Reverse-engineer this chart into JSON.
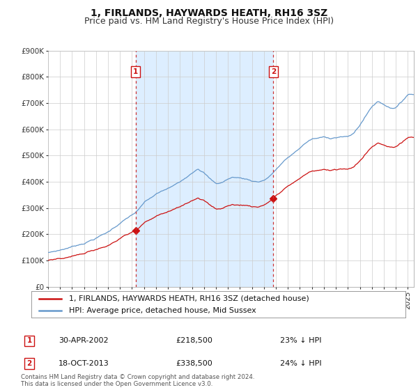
{
  "title": "1, FIRLANDS, HAYWARDS HEATH, RH16 3SZ",
  "subtitle": "Price paid vs. HM Land Registry's House Price Index (HPI)",
  "ylim": [
    0,
    900000
  ],
  "yticks": [
    0,
    100000,
    200000,
    300000,
    400000,
    500000,
    600000,
    700000,
    800000,
    900000
  ],
  "ytick_labels": [
    "£0",
    "£100K",
    "£200K",
    "£300K",
    "£400K",
    "£500K",
    "£600K",
    "£700K",
    "£800K",
    "£900K"
  ],
  "hpi_color": "#6699cc",
  "price_color": "#cc1111",
  "shade_color": "#ddeeff",
  "dashed_line_color": "#cc3333",
  "background_color": "#ffffff",
  "grid_color": "#cccccc",
  "legend_label_price": "1, FIRLANDS, HAYWARDS HEATH, RH16 3SZ (detached house)",
  "legend_label_hpi": "HPI: Average price, detached house, Mid Sussex",
  "transaction1_date": "30-APR-2002",
  "transaction1_price": 218500,
  "transaction1_note": "23% ↓ HPI",
  "transaction2_date": "18-OCT-2013",
  "transaction2_price": 338500,
  "transaction2_note": "24% ↓ HPI",
  "footnote": "Contains HM Land Registry data © Crown copyright and database right 2024.\nThis data is licensed under the Open Government Licence v3.0.",
  "title_fontsize": 10,
  "subtitle_fontsize": 9,
  "tick_fontsize": 7.5,
  "legend_fontsize": 8
}
